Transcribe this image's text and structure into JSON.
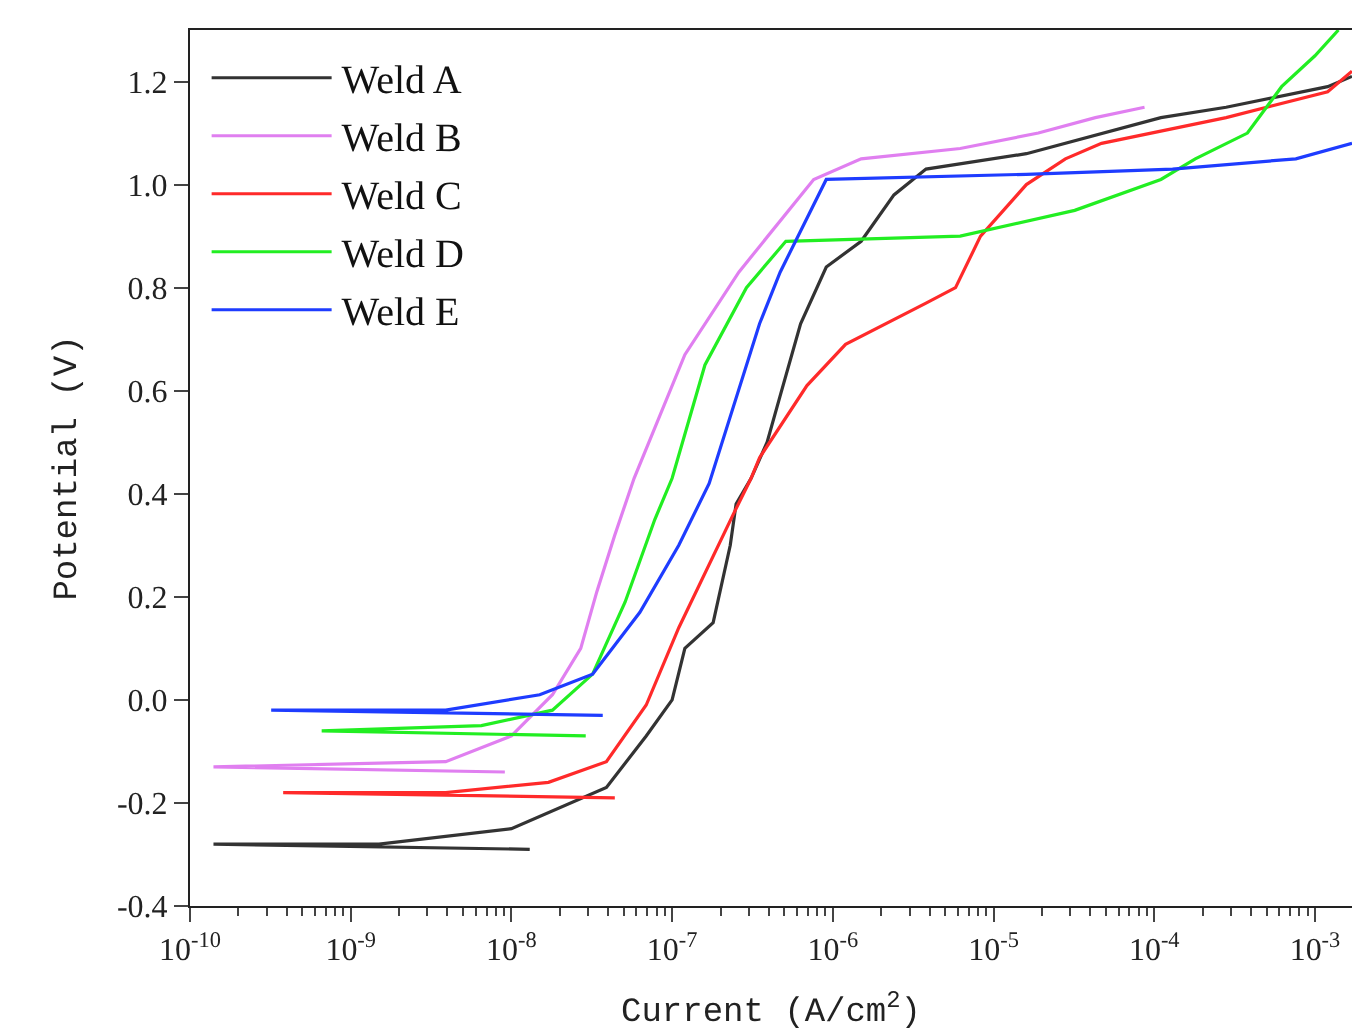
{
  "chart_data": {
    "type": "line",
    "xlabel": "Current (A/cm$^{2}$)",
    "ylabel": "Potential (V)",
    "log": "x",
    "legend": "top left",
    "marker": "none",
    "line_style": "solid",
    "xlim": [
      1e-10,
      0.0017
    ],
    "ylim": [
      -0.4,
      1.3
    ],
    "xticks": [
      {
        "value": 1e-10,
        "label": "10$^{-10}$"
      },
      {
        "value": 1e-09,
        "label": "10$^{-9}$"
      },
      {
        "value": 1e-08,
        "label": "10$^{-8}$"
      },
      {
        "value": 1e-07,
        "label": "10$^{-7}$"
      },
      {
        "value": 1e-06,
        "label": "10$^{-6}$"
      },
      {
        "value": 1e-05,
        "label": "10$^{-5}$"
      },
      {
        "value": 0.0001,
        "label": "10$^{-4}$"
      },
      {
        "value": 0.001,
        "label": "10$^{-3}$"
      }
    ],
    "yticks": [
      {
        "value": -0.4,
        "label": "-0.4"
      },
      {
        "value": -0.2,
        "label": "-0.2"
      },
      {
        "value": 0,
        "label": "0.0"
      },
      {
        "value": 0.2,
        "label": "0.2"
      },
      {
        "value": 0.4,
        "label": "0.4"
      },
      {
        "value": 0.6,
        "label": "0.6"
      },
      {
        "value": 0.8,
        "label": "0.8"
      },
      {
        "value": 1.0,
        "label": "1.0"
      },
      {
        "value": 1.2,
        "label": "1.2"
      }
    ],
    "series": [
      {
        "name": "Weld A",
        "color": "#333333",
        "x": [
          1.3e-08,
          1.4e-10,
          1.5e-09,
          1e-08,
          3.9e-08,
          6.9e-08,
          1e-07,
          1.2e-07,
          1.8e-07,
          2.3e-07,
          2.5e-07,
          3.1e-07,
          3.9e-07,
          4.7e-07,
          6.3e-07,
          9.1e-07,
          1.5e-06,
          2.4e-06,
          3.8e-06,
          1.6e-05,
          0.00011,
          0.00028,
          0.0012,
          0.0017
        ],
        "values": [
          -0.29,
          -0.28,
          -0.28,
          -0.25,
          -0.17,
          -0.07,
          0.0,
          0.1,
          0.15,
          0.3,
          0.38,
          0.43,
          0.5,
          0.59,
          0.73,
          0.84,
          0.89,
          0.98,
          1.03,
          1.06,
          1.13,
          1.15,
          1.19,
          1.21
        ]
      },
      {
        "name": "Weld B",
        "color": "#e07ff0",
        "x": [
          9.1e-09,
          1.4e-10,
          3.9e-09,
          1e-08,
          1.8e-08,
          2.7e-08,
          3.4e-08,
          4.4e-08,
          5.8e-08,
          1.2e-07,
          2.6e-07,
          3.5e-07,
          7.6e-07,
          1.5e-06,
          6.2e-06,
          1.9e-05,
          4.3e-05,
          8.7e-05
        ],
        "values": [
          -0.14,
          -0.13,
          -0.12,
          -0.07,
          0.01,
          0.1,
          0.21,
          0.32,
          0.43,
          0.67,
          0.83,
          0.88,
          1.01,
          1.05,
          1.07,
          1.1,
          1.13,
          1.15
        ]
      },
      {
        "name": "Weld C",
        "color": "#ff2a2a",
        "x": [
          4.4e-08,
          3.8e-10,
          3.9e-09,
          1.7e-08,
          3.9e-08,
          6.9e-08,
          1.1e-07,
          2.4e-07,
          3.1e-07,
          3.5e-07,
          6.9e-07,
          1.2e-06,
          3.8e-06,
          5.8e-06,
          8.3e-06,
          1.6e-05,
          2.8e-05,
          4.7e-05,
          0.00028,
          0.0012,
          0.0017
        ],
        "values": [
          -0.19,
          -0.18,
          -0.18,
          -0.16,
          -0.12,
          -0.01,
          0.14,
          0.36,
          0.43,
          0.47,
          0.61,
          0.69,
          0.77,
          0.8,
          0.9,
          1.0,
          1.05,
          1.08,
          1.13,
          1.18,
          1.22
        ]
      },
      {
        "name": "Weld D",
        "color": "#22ee22",
        "x": [
          2.9e-08,
          6.6e-10,
          6.5e-09,
          1.8e-08,
          3.2e-08,
          5.1e-08,
          7.8e-08,
          1e-07,
          1.6e-07,
          2.9e-07,
          5.1e-07,
          6.2e-06,
          3.2e-05,
          0.00011,
          0.00018,
          0.00038,
          0.00062,
          0.001,
          0.0014
        ],
        "values": [
          -0.07,
          -0.06,
          -0.05,
          -0.02,
          0.05,
          0.19,
          0.35,
          0.43,
          0.65,
          0.8,
          0.89,
          0.9,
          0.95,
          1.01,
          1.05,
          1.1,
          1.19,
          1.25,
          1.3
        ]
      },
      {
        "name": "Weld E",
        "color": "#1e3cff",
        "x": [
          3.7e-08,
          3.2e-10,
          3.9e-09,
          1.5e-08,
          3.2e-08,
          6.3e-08,
          1.1e-07,
          1.7e-07,
          3.5e-07,
          4.7e-07,
          9.1e-07,
          1.6e-05,
          0.00013,
          0.00076,
          0.0017
        ],
        "values": [
          -0.03,
          -0.02,
          -0.02,
          0.01,
          0.05,
          0.17,
          0.3,
          0.42,
          0.73,
          0.83,
          1.01,
          1.02,
          1.03,
          1.05,
          1.08
        ]
      }
    ]
  }
}
